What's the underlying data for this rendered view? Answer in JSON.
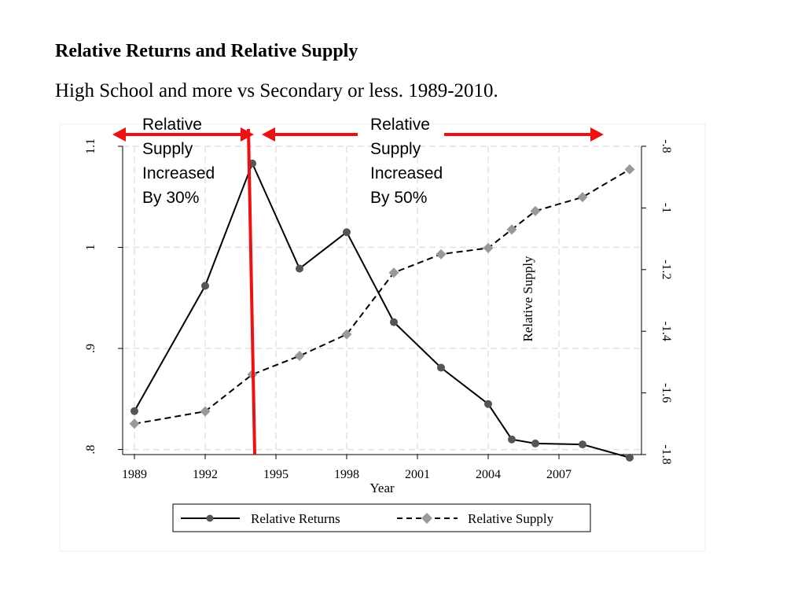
{
  "slide": {
    "title": "Relative Returns and Relative Supply",
    "subtitle": "High School and more vs Secondary or less. 1989-2010."
  },
  "annotations": {
    "left": [
      "Relative",
      "Supply",
      "Increased",
      "By 30%"
    ],
    "right": [
      "Relative",
      "Supply",
      "Increased",
      "By 50%"
    ],
    "arrow_color": "#ee1111",
    "marker_year": 1994
  },
  "chart_data": {
    "type": "line",
    "xlabel": "Year",
    "ylabel_right": "Relative Supply",
    "x_ticks": [
      1989,
      1992,
      1995,
      1998,
      2001,
      2004,
      2007
    ],
    "xlim": [
      1988.5,
      2010.5
    ],
    "y_left": {
      "lim": [
        0.795,
        1.1
      ],
      "ticks": [
        0.8,
        0.9,
        1,
        1.1
      ],
      "tick_labels": [
        ".8",
        ".9",
        "1",
        "1.1"
      ]
    },
    "y_right": {
      "lim": [
        -1.8,
        -0.8
      ],
      "ticks": [
        -1.8,
        -1.6,
        -1.4,
        -1.2,
        -1,
        -0.8
      ],
      "tick_labels": [
        "-1.8",
        "-1.6",
        "-1.4",
        "-1.2",
        "-1",
        "-.8"
      ]
    },
    "grid": true,
    "legend_placement": "bottom",
    "series": [
      {
        "name": "Relative Returns",
        "axis": "left",
        "style": "solid",
        "marker": "circle",
        "color": "#000000",
        "marker_color": "#555555",
        "x": [
          1989,
          1992,
          1994,
          1996,
          1998,
          2000,
          2002,
          2004,
          2005,
          2006,
          2008,
          2010
        ],
        "y": [
          0.838,
          0.962,
          1.083,
          0.979,
          1.015,
          0.926,
          0.881,
          0.845,
          0.81,
          0.806,
          0.805,
          0.792
        ]
      },
      {
        "name": "Relative Supply",
        "axis": "right",
        "style": "dashed",
        "marker": "diamond",
        "color": "#000000",
        "marker_color": "#999999",
        "x": [
          1989,
          1992,
          1994,
          1996,
          1998,
          2000,
          2002,
          2004,
          2005,
          2006,
          2008,
          2010
        ],
        "y": [
          -1.7,
          -1.66,
          -1.54,
          -1.48,
          -1.41,
          -1.21,
          -1.15,
          -1.13,
          -1.07,
          -1.01,
          -0.965,
          -0.875
        ]
      }
    ]
  }
}
